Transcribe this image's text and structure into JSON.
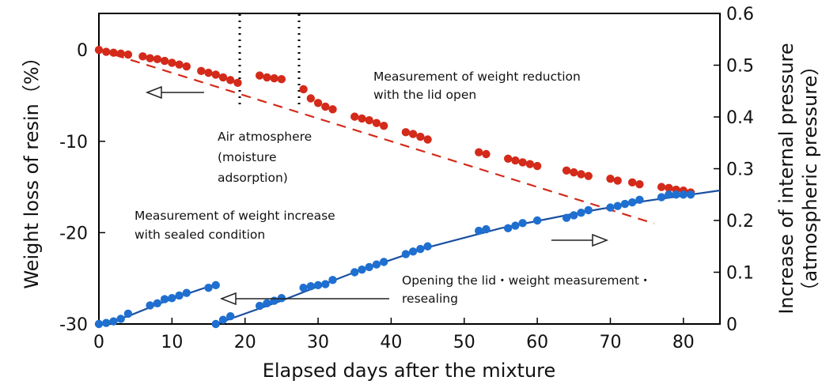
{
  "chart_data": {
    "type": "scatter",
    "xlabel": "Elapsed days after the mixture",
    "ylabel_left": "Weight loss of resin（%）",
    "ylabel_right_line1": "Increase of internal pressure",
    "ylabel_right_line2": "（atmospheric pressure）",
    "xlim": [
      0,
      85
    ],
    "ylim_left": [
      -30,
      4
    ],
    "ylim_right": [
      0,
      0.6
    ],
    "x_ticks": [
      0,
      10,
      20,
      30,
      40,
      50,
      60,
      70,
      80
    ],
    "y_left_ticks": [
      0,
      -10,
      -20,
      -30
    ],
    "y_right_ticks": [
      0.6,
      0.5,
      0.4,
      0.3,
      0.2,
      0.1,
      0
    ],
    "colors": {
      "weight": "#d42a1a",
      "pressure": "#1f6fd0",
      "pressure_fit": "#1a4fa0"
    },
    "series": [
      {
        "name": "weight",
        "axis": "left",
        "points": [
          [
            0,
            0
          ],
          [
            1,
            -0.2
          ],
          [
            2,
            -0.3
          ],
          [
            3,
            -0.4
          ],
          [
            4,
            -0.5
          ],
          [
            6,
            -0.7
          ],
          [
            7,
            -0.9
          ],
          [
            8,
            -1.0
          ],
          [
            9,
            -1.2
          ],
          [
            10,
            -1.4
          ],
          [
            11,
            -1.6
          ],
          [
            12,
            -1.8
          ],
          [
            14,
            -2.3
          ],
          [
            15,
            -2.5
          ],
          [
            16,
            -2.7
          ],
          [
            17,
            -3.0
          ],
          [
            18,
            -3.3
          ],
          [
            19,
            -3.6
          ],
          [
            22,
            -2.8
          ],
          [
            23,
            -3.0
          ],
          [
            24,
            -3.1
          ],
          [
            25,
            -3.2
          ],
          [
            28,
            -4.3
          ],
          [
            29,
            -5.3
          ],
          [
            30,
            -5.8
          ],
          [
            31,
            -6.2
          ],
          [
            32,
            -6.5
          ],
          [
            35,
            -7.3
          ],
          [
            36,
            -7.5
          ],
          [
            37,
            -7.7
          ],
          [
            38,
            -8.0
          ],
          [
            39,
            -8.3
          ],
          [
            42,
            -9.0
          ],
          [
            43,
            -9.2
          ],
          [
            44,
            -9.5
          ],
          [
            45,
            -9.8
          ],
          [
            52,
            -11.2
          ],
          [
            53,
            -11.4
          ],
          [
            56,
            -11.9
          ],
          [
            57,
            -12.1
          ],
          [
            58,
            -12.3
          ],
          [
            59,
            -12.5
          ],
          [
            60,
            -12.7
          ],
          [
            64,
            -13.2
          ],
          [
            65,
            -13.4
          ],
          [
            66,
            -13.6
          ],
          [
            67,
            -13.8
          ],
          [
            70,
            -14.1
          ],
          [
            71,
            -14.3
          ],
          [
            73,
            -14.5
          ],
          [
            74,
            -14.7
          ],
          [
            77,
            -15.0
          ],
          [
            78,
            -15.1
          ],
          [
            79,
            -15.3
          ],
          [
            80,
            -15.4
          ],
          [
            81,
            -15.6
          ]
        ]
      },
      {
        "name": "pressure",
        "axis": "right",
        "points": [
          [
            0,
            0
          ],
          [
            1,
            0.002
          ],
          [
            2,
            0.005
          ],
          [
            3,
            0.01
          ],
          [
            4,
            0.02
          ],
          [
            7,
            0.036
          ],
          [
            8,
            0.04
          ],
          [
            9,
            0.048
          ],
          [
            10,
            0.05
          ],
          [
            11,
            0.055
          ],
          [
            12,
            0.06
          ],
          [
            15,
            0.07
          ],
          [
            16,
            0.075
          ],
          [
            16,
            0
          ],
          [
            17,
            0.008
          ],
          [
            18,
            0.015
          ],
          [
            22,
            0.035
          ],
          [
            23,
            0.04
          ],
          [
            24,
            0.045
          ],
          [
            25,
            0.05
          ],
          [
            28,
            0.07
          ],
          [
            29,
            0.073
          ],
          [
            30,
            0.075
          ],
          [
            31,
            0.077
          ],
          [
            32,
            0.085
          ],
          [
            35,
            0.1
          ],
          [
            36,
            0.105
          ],
          [
            37,
            0.11
          ],
          [
            38,
            0.115
          ],
          [
            39,
            0.12
          ],
          [
            42,
            0.135
          ],
          [
            43,
            0.14
          ],
          [
            44,
            0.145
          ],
          [
            45,
            0.15
          ],
          [
            52,
            0.18
          ],
          [
            53,
            0.183
          ],
          [
            56,
            0.185
          ],
          [
            57,
            0.19
          ],
          [
            58,
            0.195
          ],
          [
            60,
            0.2
          ],
          [
            64,
            0.205
          ],
          [
            65,
            0.21
          ],
          [
            66,
            0.215
          ],
          [
            67,
            0.22
          ],
          [
            70,
            0.225
          ],
          [
            71,
            0.228
          ],
          [
            72,
            0.232
          ],
          [
            73,
            0.235
          ],
          [
            74,
            0.24
          ],
          [
            77,
            0.245
          ],
          [
            78,
            0.25
          ],
          [
            79,
            0.25
          ],
          [
            80,
            0.25
          ],
          [
            81,
            0.25
          ]
        ]
      }
    ],
    "annotations": {
      "weight_open": [
        "Measurement of weight reduction",
        "with the lid open"
      ],
      "air": [
        "Air atmosphere",
        "(moisture",
        "adsorption)"
      ],
      "weight_sealed": [
        "Measurement of weight increase",
        "with sealed condition"
      ],
      "opening": [
        "Opening the lid・weight measurement・",
        "resealing"
      ]
    }
  }
}
